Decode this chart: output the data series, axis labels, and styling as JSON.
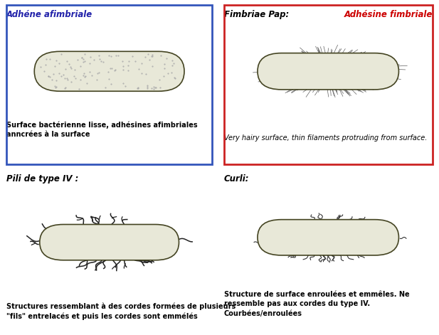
{
  "bg_color": "#ffffff",
  "bacterium_color": "#e8e8d8",
  "bacterium_edge_color": "#444422",
  "text_color_black": "#000000",
  "text_color_red": "#cc0000",
  "text_color_blue": "#2222aa",
  "border_blue": "#3355bb",
  "border_red": "#cc2222",
  "title_tl": "Adhéne afimbriale",
  "title_tr_black": "Fimbriae Pap:",
  "title_tr_red": "Adhésine fimbriale",
  "title_bl": "Pili de type IV :",
  "title_br": "Curli:",
  "caption_tl": "Surface bactérienne lisse, adhésines afimbriales\nanncrées à la surface",
  "caption_tr": "Very hairy surface, thin filaments protruding from surface.",
  "caption_bl": "Structures ressemblant à des cordes formées de plusieurs\n\"fils\" entrelacés et puis les cordes sont emmélés",
  "caption_br": "Structure de surface enroulées et emmêles. Ne\nressemble pas aux cordes du type IV.\nCourbées/enroulées"
}
